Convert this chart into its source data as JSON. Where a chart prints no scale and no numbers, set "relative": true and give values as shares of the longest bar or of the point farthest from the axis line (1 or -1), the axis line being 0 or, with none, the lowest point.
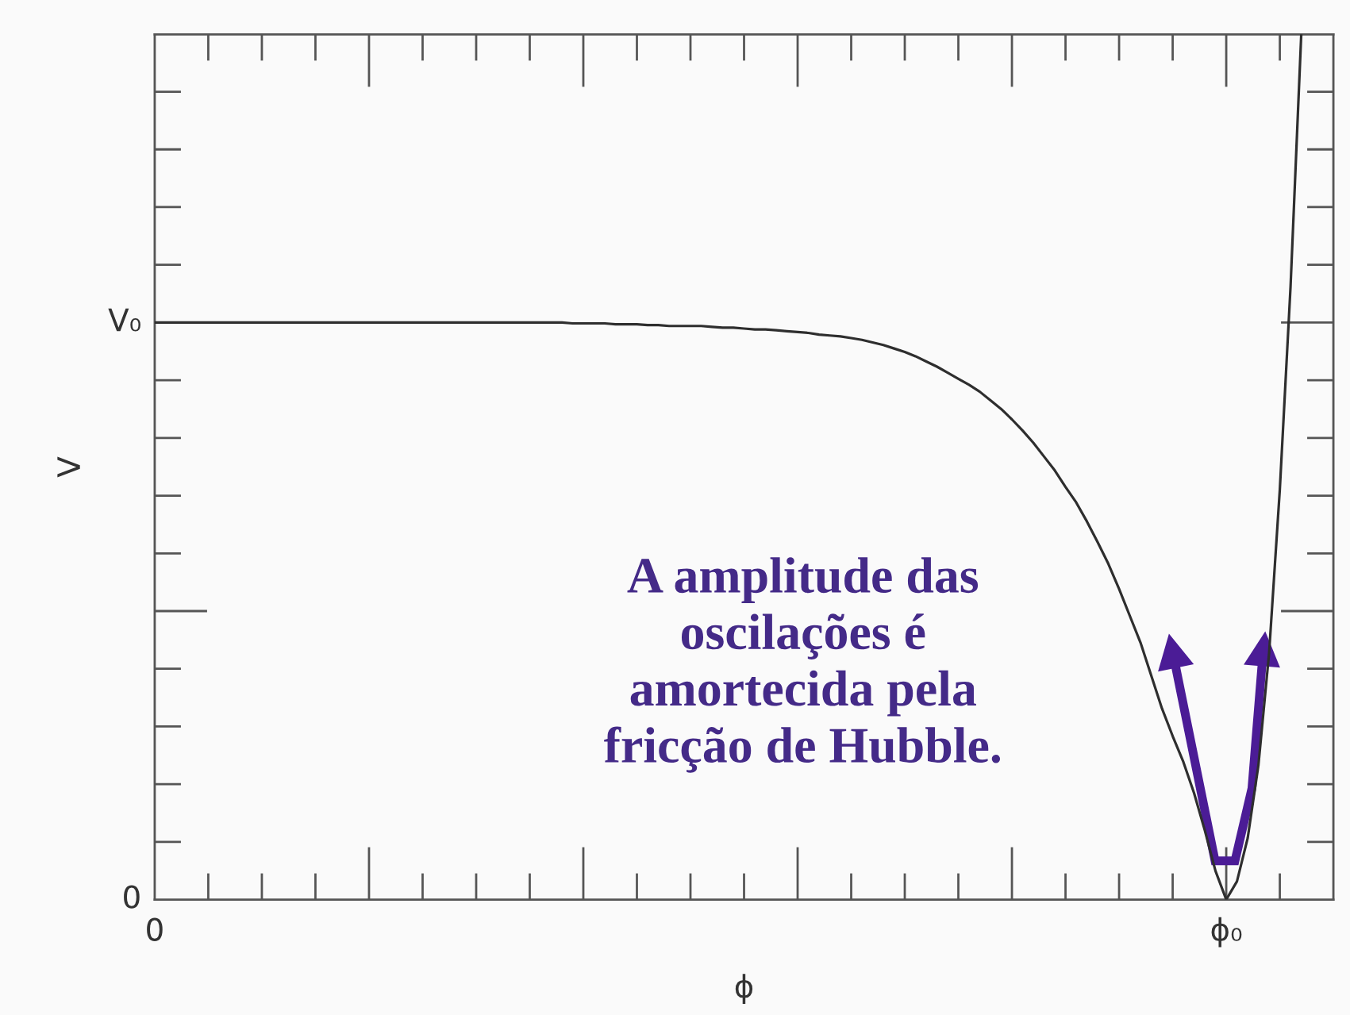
{
  "chart_data": {
    "type": "line",
    "xlabel": "ϕ",
    "ylabel": "V",
    "relative": true,
    "categories": [
      "0",
      null,
      null,
      null,
      null,
      null,
      null,
      null,
      null,
      null,
      null,
      null,
      null,
      null,
      null,
      null,
      null,
      null,
      null,
      null,
      null,
      null,
      null,
      null,
      null,
      null,
      null,
      null,
      null,
      null,
      null,
      null,
      null,
      null,
      null,
      null,
      null,
      null,
      null,
      null,
      null,
      null,
      null,
      null,
      null,
      null,
      null,
      null,
      null,
      null,
      null,
      null,
      null,
      null,
      null,
      null,
      null,
      null,
      null,
      null,
      null,
      null,
      null,
      null,
      null,
      null,
      null,
      null,
      null,
      null,
      null,
      null,
      null,
      null,
      null,
      null,
      null,
      null,
      null,
      null,
      null,
      null,
      null,
      null,
      null,
      null,
      null,
      null,
      null,
      null,
      null,
      null,
      null,
      null,
      null,
      null,
      null,
      null,
      null,
      null,
      "ϕ₀",
      null,
      null,
      null,
      null,
      null,
      null,
      null,
      null,
      null,
      null
    ],
    "series": [
      {
        "color": "#2e2e2e",
        "values": [
          0.667,
          0.667,
          0.667,
          0.667,
          0.667,
          0.667,
          0.667,
          0.667,
          0.667,
          0.667,
          0.667,
          0.667,
          0.667,
          0.667,
          0.667,
          0.667,
          0.667,
          0.667,
          0.667,
          0.667,
          0.667,
          0.667,
          0.667,
          0.667,
          0.667,
          0.667,
          0.667,
          0.667,
          0.667,
          0.667,
          0.667,
          0.667,
          0.667,
          0.667,
          0.667,
          0.667,
          0.667,
          0.667,
          0.667,
          0.666,
          0.666,
          0.666,
          0.666,
          0.665,
          0.665,
          0.665,
          0.664,
          0.664,
          0.663,
          0.663,
          0.663,
          0.663,
          0.662,
          0.661,
          0.661,
          0.66,
          0.659,
          0.659,
          0.658,
          0.657,
          0.656,
          0.655,
          0.653,
          0.652,
          0.651,
          0.649,
          0.647,
          0.644,
          0.641,
          0.637,
          0.633,
          0.628,
          0.622,
          0.616,
          0.609,
          0.602,
          0.595,
          0.587,
          0.577,
          0.567,
          0.555,
          0.542,
          0.528,
          0.512,
          0.496,
          0.477,
          0.459,
          0.437,
          0.413,
          0.388,
          0.359,
          0.328,
          0.297,
          0.259,
          0.221,
          0.189,
          0.159,
          0.123,
          0.08,
          0.033,
          0,
          0.021,
          0.071,
          0.155,
          0.285,
          0.474,
          0.708,
          1,
          null,
          null,
          null
        ]
      }
    ],
    "annotations": [
      "A amplitude das\noscilações é\namortecida pela\nfricção de Hubble.",
      "0",
      {
        "text": "V₀",
        "x": "0",
        "y": 0.667
      }
    ]
  }
}
